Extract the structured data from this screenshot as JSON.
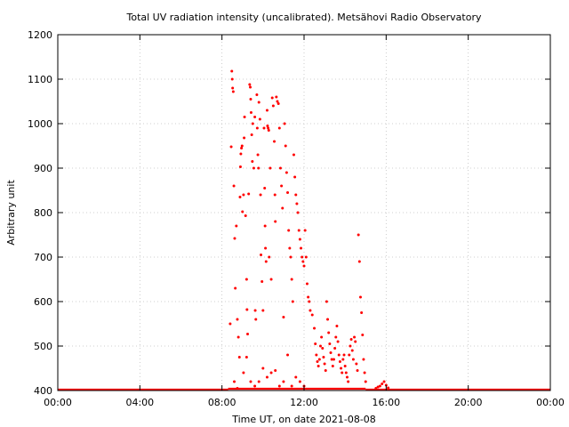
{
  "chart_data": {
    "type": "scatter",
    "title": "Total UV radiation intensity (uncalibrated). Metsähovi Radio Observatory",
    "xlabel": "Time UT, on date 2021-08-08",
    "ylabel": "Arbitrary unit",
    "x_unit": "hours UT",
    "xlim": [
      0,
      24
    ],
    "ylim": [
      400,
      1200
    ],
    "x_ticks": [
      0,
      4,
      8,
      12,
      16,
      20,
      24
    ],
    "x_tick_labels": [
      "00:00",
      "04:00",
      "08:00",
      "12:00",
      "16:00",
      "20:00",
      "00:00"
    ],
    "y_ticks": [
      400,
      500,
      600,
      700,
      800,
      900,
      1000,
      1100,
      1200
    ],
    "y_tick_labels": [
      "400",
      "500",
      "600",
      "700",
      "800",
      "900",
      "1000",
      "1100",
      "1200"
    ],
    "grid": true,
    "legend": "none",
    "marker_color": "#ff0000",
    "series": [
      {
        "baseline_segments": [
          [
            0,
            8.3,
            400
          ],
          [
            8.3,
            15.0,
            402
          ],
          [
            15.0,
            24,
            400
          ]
        ],
        "points": [
          [
            8.4,
            550
          ],
          [
            8.45,
            948
          ],
          [
            8.48,
            1118
          ],
          [
            8.5,
            1100
          ],
          [
            8.52,
            1080
          ],
          [
            8.55,
            1072
          ],
          [
            8.58,
            860
          ],
          [
            8.62,
            742
          ],
          [
            8.65,
            630
          ],
          [
            8.7,
            770
          ],
          [
            8.75,
            560
          ],
          [
            8.8,
            520
          ],
          [
            8.85,
            475
          ],
          [
            8.88,
            835
          ],
          [
            8.9,
            903
          ],
          [
            8.92,
            932
          ],
          [
            8.95,
            945
          ],
          [
            8.98,
            950
          ],
          [
            9.0,
            802
          ],
          [
            9.05,
            840
          ],
          [
            9.08,
            968
          ],
          [
            9.1,
            1015
          ],
          [
            9.15,
            793
          ],
          [
            9.2,
            650
          ],
          [
            9.22,
            582
          ],
          [
            9.25,
            527
          ],
          [
            9.3,
            842
          ],
          [
            9.35,
            1088
          ],
          [
            9.38,
            1082
          ],
          [
            9.4,
            1055
          ],
          [
            9.42,
            1025
          ],
          [
            9.45,
            975
          ],
          [
            9.48,
            915
          ],
          [
            9.5,
            1000
          ],
          [
            9.55,
            900
          ],
          [
            9.6,
            1015
          ],
          [
            9.62,
            580
          ],
          [
            9.65,
            560
          ],
          [
            9.7,
            1065
          ],
          [
            9.72,
            990
          ],
          [
            9.75,
            930
          ],
          [
            9.78,
            900
          ],
          [
            9.8,
            1048
          ],
          [
            9.85,
            1010
          ],
          [
            9.88,
            840
          ],
          [
            9.9,
            705
          ],
          [
            9.95,
            645
          ],
          [
            10.0,
            580
          ],
          [
            10.05,
            990
          ],
          [
            10.08,
            855
          ],
          [
            10.1,
            770
          ],
          [
            10.12,
            720
          ],
          [
            10.15,
            690
          ],
          [
            10.2,
            1030
          ],
          [
            10.22,
            995
          ],
          [
            10.25,
            990
          ],
          [
            10.28,
            985
          ],
          [
            10.3,
            700
          ],
          [
            10.35,
            900
          ],
          [
            10.4,
            650
          ],
          [
            10.45,
            1058
          ],
          [
            10.5,
            1040
          ],
          [
            10.55,
            960
          ],
          [
            10.58,
            840
          ],
          [
            10.6,
            780
          ],
          [
            10.65,
            1060
          ],
          [
            10.7,
            1050
          ],
          [
            10.75,
            1045
          ],
          [
            10.8,
            990
          ],
          [
            10.85,
            900
          ],
          [
            10.9,
            860
          ],
          [
            10.95,
            810
          ],
          [
            11.0,
            565
          ],
          [
            11.05,
            1000
          ],
          [
            11.1,
            950
          ],
          [
            11.15,
            890
          ],
          [
            11.2,
            845
          ],
          [
            11.25,
            760
          ],
          [
            11.3,
            720
          ],
          [
            11.35,
            700
          ],
          [
            11.4,
            650
          ],
          [
            11.45,
            600
          ],
          [
            11.5,
            930
          ],
          [
            11.55,
            880
          ],
          [
            11.6,
            840
          ],
          [
            11.65,
            820
          ],
          [
            11.7,
            800
          ],
          [
            11.75,
            760
          ],
          [
            11.8,
            740
          ],
          [
            11.85,
            720
          ],
          [
            11.9,
            700
          ],
          [
            11.95,
            690
          ],
          [
            12.0,
            680
          ],
          [
            12.05,
            760
          ],
          [
            12.1,
            700
          ],
          [
            12.15,
            640
          ],
          [
            12.2,
            610
          ],
          [
            12.25,
            600
          ],
          [
            12.3,
            580
          ],
          [
            8.6,
            420
          ],
          [
            8.75,
            405
          ],
          [
            9.05,
            440
          ],
          [
            9.2,
            475
          ],
          [
            9.4,
            420
          ],
          [
            9.6,
            410
          ],
          [
            9.8,
            420
          ],
          [
            10.0,
            450
          ],
          [
            10.2,
            430
          ],
          [
            10.4,
            440
          ],
          [
            10.6,
            445
          ],
          [
            10.8,
            410
          ],
          [
            11.0,
            420
          ],
          [
            11.2,
            480
          ],
          [
            11.4,
            410
          ],
          [
            11.6,
            430
          ],
          [
            11.8,
            420
          ],
          [
            12.0,
            410
          ],
          [
            12.4,
            570
          ],
          [
            12.5,
            540
          ],
          [
            12.55,
            505
          ],
          [
            12.6,
            480
          ],
          [
            12.65,
            465
          ],
          [
            12.7,
            455
          ],
          [
            12.75,
            470
          ],
          [
            12.8,
            500
          ],
          [
            12.85,
            520
          ],
          [
            12.9,
            495
          ],
          [
            12.95,
            475
          ],
          [
            13.0,
            460
          ],
          [
            13.05,
            445
          ],
          [
            13.1,
            600
          ],
          [
            13.15,
            560
          ],
          [
            13.2,
            530
          ],
          [
            13.25,
            505
          ],
          [
            13.3,
            485
          ],
          [
            13.35,
            470
          ],
          [
            13.4,
            455
          ],
          [
            13.45,
            470
          ],
          [
            13.5,
            495
          ],
          [
            13.55,
            520
          ],
          [
            13.6,
            545
          ],
          [
            13.65,
            510
          ],
          [
            13.7,
            480
          ],
          [
            13.75,
            465
          ],
          [
            13.8,
            450
          ],
          [
            13.85,
            440
          ],
          [
            13.9,
            470
          ],
          [
            13.95,
            480
          ],
          [
            14.0,
            455
          ],
          [
            14.05,
            440
          ],
          [
            14.1,
            430
          ],
          [
            14.15,
            420
          ],
          [
            14.2,
            480
          ],
          [
            14.25,
            500
          ],
          [
            14.3,
            515
          ],
          [
            14.35,
            490
          ],
          [
            14.4,
            470
          ],
          [
            14.45,
            520
          ],
          [
            14.5,
            510
          ],
          [
            14.55,
            460
          ],
          [
            14.6,
            445
          ],
          [
            14.65,
            750
          ],
          [
            14.7,
            690
          ],
          [
            14.75,
            610
          ],
          [
            14.8,
            575
          ],
          [
            14.85,
            525
          ],
          [
            14.9,
            470
          ],
          [
            14.95,
            440
          ],
          [
            15.0,
            420
          ],
          [
            15.5,
            405
          ],
          [
            15.6,
            408
          ],
          [
            15.7,
            410
          ],
          [
            15.8,
            415
          ],
          [
            15.9,
            420
          ],
          [
            16.0,
            412
          ],
          [
            16.1,
            406
          ]
        ]
      }
    ]
  }
}
